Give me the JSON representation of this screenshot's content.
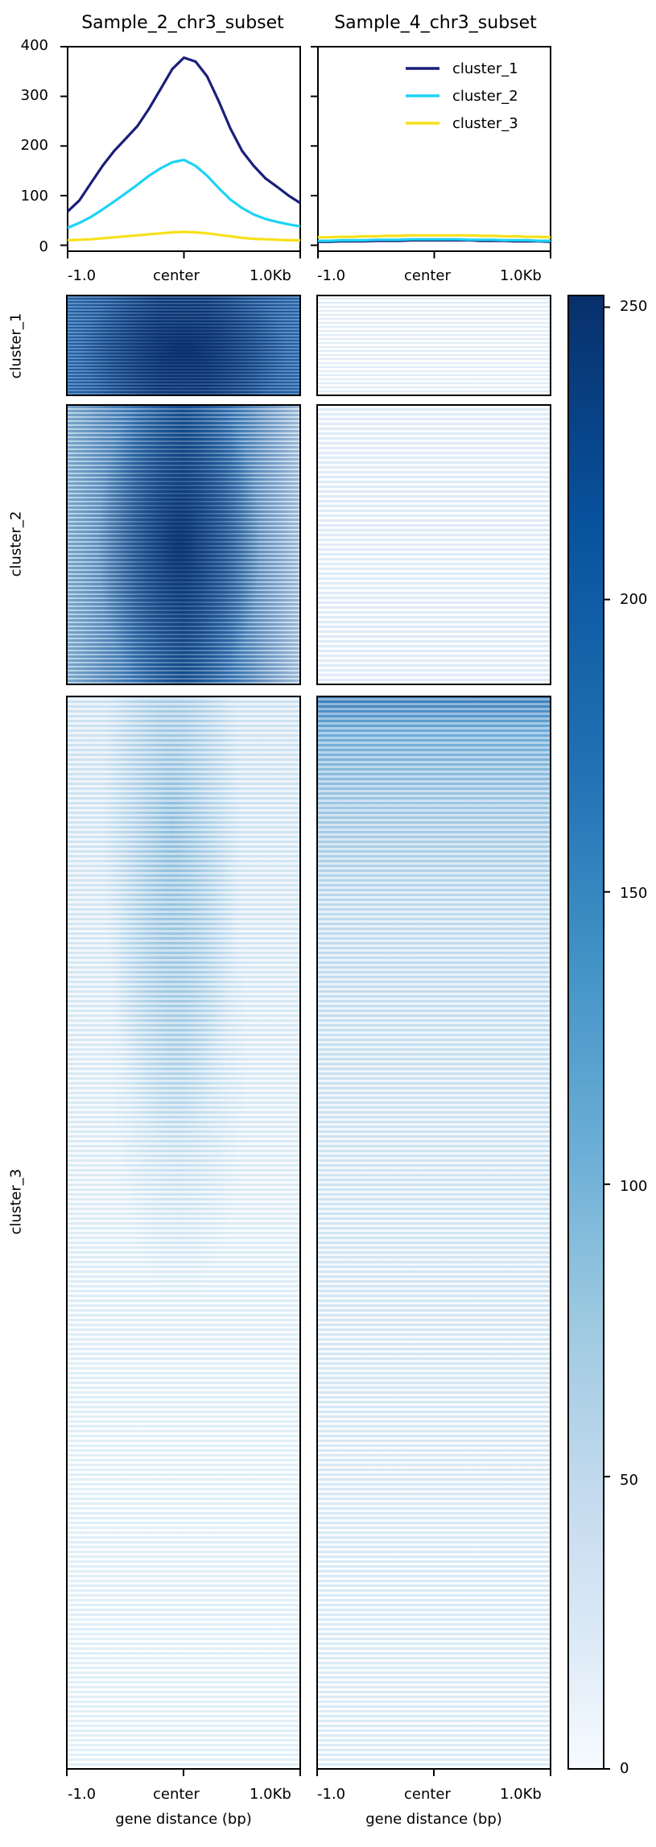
{
  "chart_data": [
    {
      "type": "line",
      "title": "Sample_2_chr3_subset",
      "x_tick_labels": [
        "-1.0",
        "center",
        "1.0Kb"
      ],
      "y_ticks": [
        0,
        100,
        200,
        300,
        400
      ],
      "ylim": [
        -12,
        400
      ],
      "x": [
        -1000,
        -900,
        -800,
        -700,
        -600,
        -500,
        -400,
        -300,
        -200,
        -100,
        0,
        100,
        200,
        300,
        400,
        500,
        600,
        700,
        800,
        900,
        1000
      ],
      "series": [
        {
          "name": "cluster_1",
          "color": "#1a1f7a",
          "values": [
            68,
            90,
            125,
            160,
            190,
            215,
            240,
            275,
            315,
            355,
            378,
            370,
            340,
            290,
            235,
            190,
            160,
            135,
            118,
            100,
            85
          ]
        },
        {
          "name": "cluster_2",
          "color": "#1dd3f5",
          "values": [
            35,
            45,
            57,
            72,
            88,
            105,
            122,
            140,
            155,
            167,
            172,
            160,
            140,
            115,
            92,
            75,
            62,
            53,
            47,
            42,
            38
          ]
        },
        {
          "name": "cluster_3",
          "color": "#f7e01c",
          "values": [
            10,
            11,
            12,
            14,
            16,
            18,
            20,
            22,
            24,
            26,
            27,
            26,
            24,
            21,
            18,
            15,
            13,
            12,
            11,
            10,
            10
          ]
        }
      ],
      "legend_position": "none"
    },
    {
      "type": "line",
      "title": "Sample_4_chr3_subset",
      "x_tick_labels": [
        "-1.0",
        "center",
        "1.0Kb"
      ],
      "ylim": [
        -12,
        400
      ],
      "x": [
        -1000,
        -900,
        -800,
        -700,
        -600,
        -500,
        -400,
        -300,
        -200,
        -100,
        0,
        100,
        200,
        300,
        400,
        500,
        600,
        700,
        800,
        900,
        1000
      ],
      "series": [
        {
          "name": "cluster_1",
          "color": "#1a1f7a",
          "values": [
            7,
            7,
            8,
            8,
            8,
            9,
            9,
            9,
            10,
            10,
            10,
            10,
            10,
            10,
            9,
            9,
            9,
            8,
            8,
            8,
            7
          ]
        },
        {
          "name": "cluster_2",
          "color": "#1dd3f5",
          "values": [
            9,
            9,
            10,
            10,
            10,
            11,
            11,
            11,
            12,
            12,
            12,
            12,
            12,
            11,
            11,
            11,
            10,
            10,
            10,
            9,
            9
          ]
        },
        {
          "name": "cluster_3",
          "color": "#f7e01c",
          "values": [
            16,
            16,
            17,
            17,
            18,
            18,
            19,
            19,
            20,
            20,
            20,
            20,
            20,
            20,
            19,
            19,
            18,
            18,
            17,
            17,
            16
          ]
        }
      ],
      "legend_position": "top-right"
    },
    {
      "type": "heatmap",
      "row_groups": [
        "cluster_1",
        "cluster_2",
        "cluster_3"
      ],
      "columns": [
        "Sample_2_chr3_subset",
        "Sample_4_chr3_subset"
      ],
      "x_tick_labels": [
        "-1.0",
        "center",
        "1.0Kb"
      ],
      "xlabel": "gene distance (bp)",
      "colorbar": {
        "min": 0,
        "max": 252,
        "ticks": [
          0,
          50,
          100,
          150,
          200,
          250
        ],
        "colormap": "Blues"
      },
      "approx_intensity": {
        "Sample_2_chr3_subset": {
          "cluster_1": 200,
          "cluster_2": 160,
          "cluster_3": 35
        },
        "Sample_4_chr3_subset": {
          "cluster_1": 8,
          "cluster_2": 10,
          "cluster_3": 25
        }
      }
    }
  ],
  "labels": {
    "title_left": "Sample_2_chr3_subset",
    "title_right": "Sample_4_chr3_subset",
    "xticks": [
      "-1.0",
      "center",
      "1.0Kb"
    ],
    "yticks": [
      "400",
      "300",
      "200",
      "100",
      "0"
    ],
    "cluster_labels": [
      "cluster_1",
      "cluster_2",
      "cluster_3"
    ],
    "xlabel": "gene distance (bp)",
    "colorbar_ticks": [
      "250",
      "200",
      "150",
      "100",
      "50",
      "0"
    ],
    "legend": [
      "cluster_1",
      "cluster_2",
      "cluster_3"
    ]
  }
}
